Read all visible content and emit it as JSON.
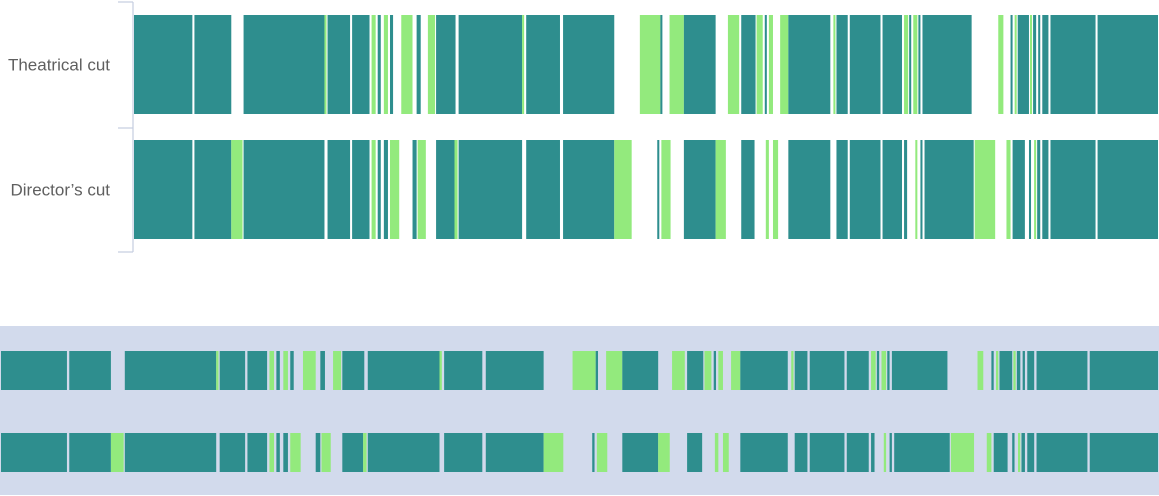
{
  "chart_data": {
    "type": "bar",
    "title": "",
    "xlabel": "",
    "ylabel": "",
    "x_range": [
      0,
      100
    ],
    "colors": {
      "shared": "#2e8e8e",
      "unique": "#93ea7d",
      "overview_band": "#d2daec",
      "axis": "#c5cde0",
      "label": "#5f5f5f"
    },
    "series": [
      {
        "name": "Theatrical cut",
        "segments": [
          {
            "start": 0.0,
            "end": 5.7,
            "type": "shared"
          },
          {
            "start": 5.9,
            "end": 9.5,
            "type": "shared"
          },
          {
            "start": 10.7,
            "end": 18.6,
            "type": "shared"
          },
          {
            "start": 18.6,
            "end": 18.8,
            "type": "unique"
          },
          {
            "start": 18.9,
            "end": 21.1,
            "type": "shared"
          },
          {
            "start": 21.3,
            "end": 23.0,
            "type": "shared"
          },
          {
            "start": 23.2,
            "end": 23.6,
            "type": "unique"
          },
          {
            "start": 23.8,
            "end": 24.1,
            "type": "shared"
          },
          {
            "start": 24.4,
            "end": 24.8,
            "type": "unique"
          },
          {
            "start": 25.0,
            "end": 25.3,
            "type": "shared"
          },
          {
            "start": 26.1,
            "end": 27.2,
            "type": "unique"
          },
          {
            "start": 27.6,
            "end": 28.0,
            "type": "shared"
          },
          {
            "start": 28.7,
            "end": 29.4,
            "type": "unique"
          },
          {
            "start": 29.5,
            "end": 31.4,
            "type": "shared"
          },
          {
            "start": 31.7,
            "end": 37.9,
            "type": "shared"
          },
          {
            "start": 37.9,
            "end": 38.1,
            "type": "unique"
          },
          {
            "start": 38.3,
            "end": 41.6,
            "type": "shared"
          },
          {
            "start": 41.9,
            "end": 46.9,
            "type": "shared"
          },
          {
            "start": 49.4,
            "end": 51.4,
            "type": "unique"
          },
          {
            "start": 51.4,
            "end": 51.6,
            "type": "shared"
          },
          {
            "start": 52.3,
            "end": 53.7,
            "type": "unique"
          },
          {
            "start": 53.7,
            "end": 56.8,
            "type": "shared"
          },
          {
            "start": 58.0,
            "end": 59.1,
            "type": "unique"
          },
          {
            "start": 59.3,
            "end": 60.7,
            "type": "shared"
          },
          {
            "start": 60.8,
            "end": 61.4,
            "type": "unique"
          },
          {
            "start": 61.6,
            "end": 61.8,
            "type": "shared"
          },
          {
            "start": 62.0,
            "end": 62.4,
            "type": "unique"
          },
          {
            "start": 63.1,
            "end": 63.9,
            "type": "unique"
          },
          {
            "start": 63.9,
            "end": 68.0,
            "type": "shared"
          },
          {
            "start": 68.3,
            "end": 68.5,
            "type": "unique"
          },
          {
            "start": 68.6,
            "end": 69.7,
            "type": "shared"
          },
          {
            "start": 69.9,
            "end": 72.9,
            "type": "shared"
          },
          {
            "start": 73.1,
            "end": 75.0,
            "type": "shared"
          },
          {
            "start": 75.2,
            "end": 75.6,
            "type": "unique"
          },
          {
            "start": 75.7,
            "end": 75.9,
            "type": "shared"
          },
          {
            "start": 76.1,
            "end": 76.5,
            "type": "unique"
          },
          {
            "start": 76.6,
            "end": 76.8,
            "type": "shared"
          },
          {
            "start": 77.0,
            "end": 81.8,
            "type": "shared"
          },
          {
            "start": 84.4,
            "end": 84.9,
            "type": "unique"
          },
          {
            "start": 85.6,
            "end": 85.8,
            "type": "shared"
          },
          {
            "start": 86.0,
            "end": 86.2,
            "type": "unique"
          },
          {
            "start": 86.3,
            "end": 87.4,
            "type": "shared"
          },
          {
            "start": 87.5,
            "end": 87.7,
            "type": "unique"
          },
          {
            "start": 87.8,
            "end": 88.1,
            "type": "shared"
          },
          {
            "start": 88.3,
            "end": 88.5,
            "type": "shared"
          },
          {
            "start": 88.7,
            "end": 89.3,
            "type": "shared"
          },
          {
            "start": 89.5,
            "end": 93.9,
            "type": "shared"
          },
          {
            "start": 94.1,
            "end": 100.0,
            "type": "shared"
          }
        ]
      },
      {
        "name": "Director’s cut",
        "segments": [
          {
            "start": 0.0,
            "end": 5.7,
            "type": "shared"
          },
          {
            "start": 5.9,
            "end": 9.5,
            "type": "shared"
          },
          {
            "start": 9.5,
            "end": 10.6,
            "type": "unique"
          },
          {
            "start": 10.7,
            "end": 18.6,
            "type": "shared"
          },
          {
            "start": 18.9,
            "end": 21.1,
            "type": "shared"
          },
          {
            "start": 21.3,
            "end": 23.0,
            "type": "shared"
          },
          {
            "start": 23.2,
            "end": 23.6,
            "type": "unique"
          },
          {
            "start": 23.8,
            "end": 24.1,
            "type": "shared"
          },
          {
            "start": 24.4,
            "end": 24.8,
            "type": "shared"
          },
          {
            "start": 25.0,
            "end": 25.9,
            "type": "unique"
          },
          {
            "start": 27.2,
            "end": 27.6,
            "type": "shared"
          },
          {
            "start": 27.7,
            "end": 28.5,
            "type": "unique"
          },
          {
            "start": 29.5,
            "end": 31.3,
            "type": "shared"
          },
          {
            "start": 31.3,
            "end": 31.6,
            "type": "unique"
          },
          {
            "start": 31.7,
            "end": 37.9,
            "type": "shared"
          },
          {
            "start": 38.3,
            "end": 41.6,
            "type": "shared"
          },
          {
            "start": 41.9,
            "end": 46.9,
            "type": "shared"
          },
          {
            "start": 46.9,
            "end": 48.6,
            "type": "unique"
          },
          {
            "start": 51.1,
            "end": 51.3,
            "type": "shared"
          },
          {
            "start": 51.5,
            "end": 52.4,
            "type": "unique"
          },
          {
            "start": 53.7,
            "end": 56.8,
            "type": "shared"
          },
          {
            "start": 56.8,
            "end": 57.8,
            "type": "unique"
          },
          {
            "start": 59.3,
            "end": 60.6,
            "type": "shared"
          },
          {
            "start": 61.7,
            "end": 62.0,
            "type": "unique"
          },
          {
            "start": 62.4,
            "end": 62.9,
            "type": "unique"
          },
          {
            "start": 63.9,
            "end": 68.0,
            "type": "shared"
          },
          {
            "start": 68.6,
            "end": 69.7,
            "type": "shared"
          },
          {
            "start": 69.9,
            "end": 72.9,
            "type": "shared"
          },
          {
            "start": 73.1,
            "end": 75.0,
            "type": "shared"
          },
          {
            "start": 75.2,
            "end": 75.5,
            "type": "shared"
          },
          {
            "start": 76.3,
            "end": 76.5,
            "type": "unique"
          },
          {
            "start": 76.8,
            "end": 77.0,
            "type": "shared"
          },
          {
            "start": 77.2,
            "end": 82.0,
            "type": "shared"
          },
          {
            "start": 82.1,
            "end": 84.1,
            "type": "unique"
          },
          {
            "start": 85.2,
            "end": 85.6,
            "type": "unique"
          },
          {
            "start": 85.8,
            "end": 87.0,
            "type": "shared"
          },
          {
            "start": 87.4,
            "end": 87.6,
            "type": "shared"
          },
          {
            "start": 87.9,
            "end": 88.1,
            "type": "unique"
          },
          {
            "start": 88.2,
            "end": 88.5,
            "type": "shared"
          },
          {
            "start": 88.7,
            "end": 89.3,
            "type": "shared"
          },
          {
            "start": 89.5,
            "end": 93.9,
            "type": "shared"
          },
          {
            "start": 94.1,
            "end": 100.0,
            "type": "shared"
          }
        ]
      }
    ]
  }
}
